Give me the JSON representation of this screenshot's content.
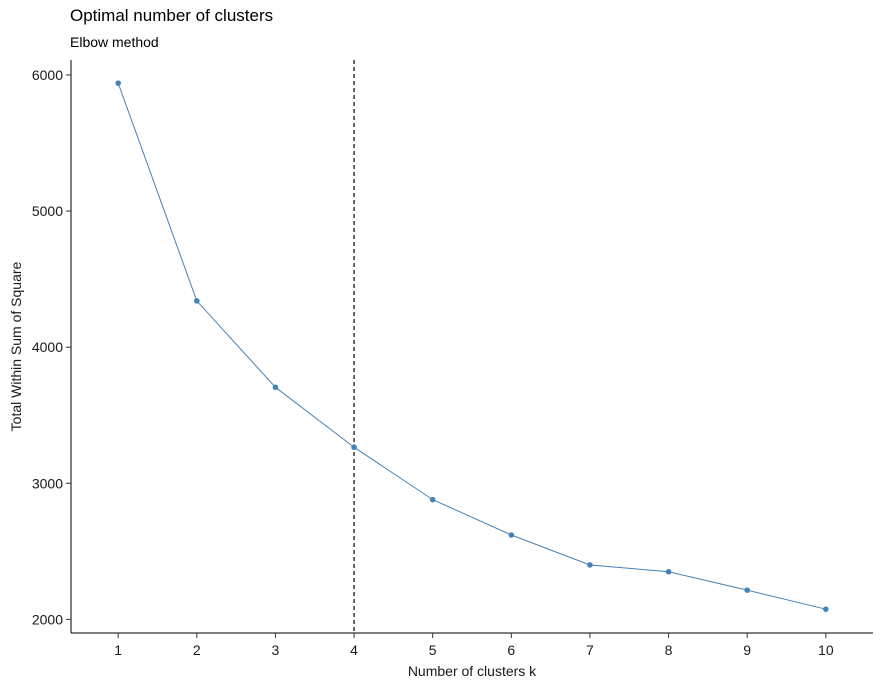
{
  "chart_data": {
    "type": "line",
    "title": "Optimal number of clusters",
    "subtitle": "Elbow method",
    "xlabel": "Number of clusters k",
    "ylabel": "Total Within Sum of Square",
    "x": [
      1,
      2,
      3,
      4,
      5,
      6,
      7,
      8,
      9,
      10
    ],
    "series": [
      {
        "values": [
          5940,
          4340,
          3705,
          3265,
          2880,
          2620,
          2400,
          2350,
          2215,
          2075
        ]
      }
    ],
    "x_ticks": [
      "1",
      "2",
      "3",
      "4",
      "5",
      "6",
      "7",
      "8",
      "9",
      "10"
    ],
    "y_ticks": [
      2000,
      3000,
      4000,
      5000,
      6000
    ],
    "xlim": [
      0.4,
      10.6
    ],
    "ylim": [
      1900,
      6110
    ],
    "vline_x": 4,
    "series_color": "#4682b4",
    "vline_color": "#000000",
    "grid": false,
    "legend": "none"
  }
}
